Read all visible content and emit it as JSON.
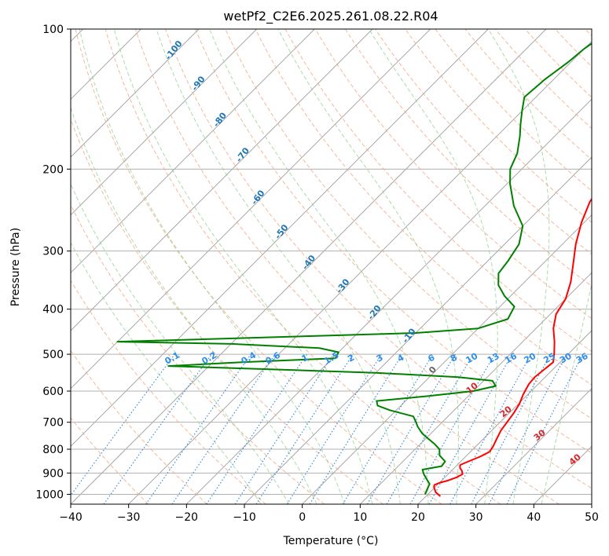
{
  "chart_data": {
    "type": "line",
    "title": "wetPf2_C2E6.2025.261.08.22.R04",
    "xlabel": "Temperature (°C)",
    "ylabel": "Pressure (hPa)",
    "xlim": [
      -40,
      50
    ],
    "ylim": [
      1050,
      100
    ],
    "x_ticks": [
      -40,
      -30,
      -20,
      -10,
      0,
      10,
      20,
      30,
      40,
      50
    ],
    "y_ticks": [
      100,
      200,
      300,
      400,
      500,
      600,
      700,
      800,
      900,
      1000
    ],
    "y_scale": "log",
    "grid": true,
    "series": [
      {
        "name": "Temperature",
        "color": "#ff0000",
        "points": [
          [
            1010,
            22.5
          ],
          [
            990,
            21.0
          ],
          [
            965,
            19.8
          ],
          [
            955,
            19.5
          ],
          [
            945,
            20.0
          ],
          [
            935,
            21.0
          ],
          [
            920,
            22.0
          ],
          [
            905,
            22.5
          ],
          [
            890,
            21.8
          ],
          [
            878,
            21.0
          ],
          [
            865,
            20.5
          ],
          [
            850,
            21.3
          ],
          [
            830,
            22.5
          ],
          [
            810,
            23.3
          ],
          [
            790,
            23.0
          ],
          [
            760,
            22.3
          ],
          [
            730,
            21.6
          ],
          [
            700,
            21.2
          ],
          [
            670,
            20.8
          ],
          [
            640,
            20.2
          ],
          [
            610,
            19.2
          ],
          [
            580,
            18.4
          ],
          [
            560,
            18.2
          ],
          [
            540,
            18.5
          ],
          [
            520,
            18.8
          ],
          [
            500,
            17.6
          ],
          [
            470,
            15.5
          ],
          [
            440,
            13.0
          ],
          [
            410,
            11.0
          ],
          [
            380,
            10.0
          ],
          [
            350,
            8.0
          ],
          [
            320,
            5.3
          ],
          [
            290,
            2.3
          ],
          [
            260,
            -0.5
          ],
          [
            235,
            -2.6
          ],
          [
            210,
            -3.8
          ],
          [
            195,
            -4.2
          ],
          [
            180,
            -3.8
          ],
          [
            165,
            -3.5
          ],
          [
            150,
            -3.2
          ],
          [
            138,
            -2.7
          ],
          [
            126,
            -2.3
          ],
          [
            116,
            -2.2
          ],
          [
            108,
            -1.8
          ],
          [
            100,
            -0.8
          ]
        ]
      },
      {
        "name": "Dewpoint",
        "color": "#008000",
        "points": [
          [
            1000,
            19.5
          ],
          [
            975,
            19.0
          ],
          [
            950,
            18.5
          ],
          [
            925,
            17.0
          ],
          [
            905,
            15.8
          ],
          [
            885,
            14.8
          ],
          [
            870,
            17.5
          ],
          [
            850,
            17.3
          ],
          [
            825,
            15.3
          ],
          [
            800,
            14.2
          ],
          [
            780,
            12.5
          ],
          [
            760,
            10.5
          ],
          [
            740,
            8.5
          ],
          [
            715,
            6.5
          ],
          [
            700,
            5.5
          ],
          [
            680,
            4.0
          ],
          [
            660,
            -1.0
          ],
          [
            645,
            -4.0
          ],
          [
            630,
            -5.0
          ],
          [
            615,
            3.0
          ],
          [
            600,
            10.0
          ],
          [
            585,
            13.0
          ],
          [
            570,
            11.5
          ],
          [
            560,
            5.0
          ],
          [
            548,
            -10.0
          ],
          [
            538,
            -30.0
          ],
          [
            530,
            -47.0
          ],
          [
            520,
            -35.0
          ],
          [
            510,
            -19.5
          ],
          [
            495,
            -20.0
          ],
          [
            485,
            -24.0
          ],
          [
            475,
            -40.0
          ],
          [
            470,
            -60.0
          ],
          [
            460,
            -35.0
          ],
          [
            450,
            -10.0
          ],
          [
            440,
            0.0
          ],
          [
            420,
            3.5
          ],
          [
            395,
            2.5
          ],
          [
            375,
            -1.0
          ],
          [
            355,
            -4.0
          ],
          [
            335,
            -6.0
          ],
          [
            315,
            -6.5
          ],
          [
            290,
            -7.5
          ],
          [
            265,
            -10.0
          ],
          [
            240,
            -15.0
          ],
          [
            215,
            -19.5
          ],
          [
            200,
            -22.0
          ],
          [
            185,
            -23.5
          ],
          [
            170,
            -26.0
          ],
          [
            160,
            -28.0
          ],
          [
            150,
            -30.0
          ],
          [
            140,
            -32.0
          ],
          [
            128,
            -31.5
          ],
          [
            118,
            -30.5
          ],
          [
            110,
            -30.0
          ],
          [
            103,
            -29.0
          ],
          [
            100,
            -28.5
          ]
        ]
      }
    ],
    "dry_adiabat_labels": [
      "-100",
      "-90",
      "-80",
      "-70",
      "-60",
      "-50",
      "-40",
      "-30",
      "-20",
      "-10",
      "0"
    ],
    "moist_adiabat_labels": [
      "10",
      "20",
      "30",
      "40"
    ],
    "mixing_ratio_labels": [
      "0.1",
      "0.2",
      "0.4",
      "0.6",
      "1",
      "1.5",
      "2",
      "3",
      "4",
      "6",
      "8",
      "10",
      "13",
      "16",
      "20",
      "25",
      "30",
      "36"
    ]
  }
}
